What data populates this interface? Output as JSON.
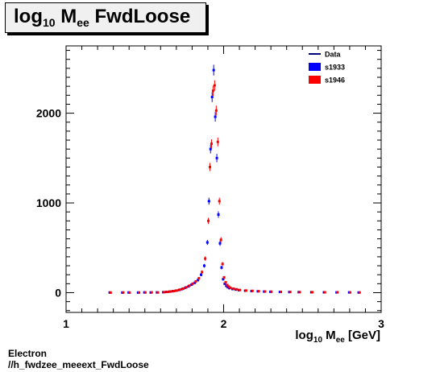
{
  "title": {
    "main": "log",
    "sub1": "10",
    "mid": " M",
    "sub2": "ee",
    "tail": " FwdLoose"
  },
  "footer": {
    "line1": "Electron",
    "line2": "//h_fwdzee_meeext_FwdLoose"
  },
  "chart_data": {
    "type": "scatter",
    "title": "log10 Mee FwdLoose",
    "xlabel": "log10 Mee [GeV]",
    "ylabel": "",
    "xlim": [
      1,
      3
    ],
    "ylim": [
      -220,
      2750
    ],
    "xticks": [
      "1",
      "2",
      "3"
    ],
    "yticks": [
      "0",
      "1000",
      "2000"
    ],
    "grid": false,
    "legend_position": "top-right",
    "legend": [
      {
        "label": "Data",
        "color": "#000080",
        "style": "line"
      },
      {
        "label": "s1933",
        "color": "#0000ff",
        "style": "box"
      },
      {
        "label": "s1946",
        "color": "#ff0000",
        "style": "box"
      }
    ],
    "x": [
      1.28,
      1.36,
      1.4,
      1.46,
      1.5,
      1.54,
      1.58,
      1.62,
      1.64,
      1.66,
      1.68,
      1.7,
      1.72,
      1.74,
      1.76,
      1.78,
      1.8,
      1.82,
      1.84,
      1.86,
      1.88,
      1.9,
      1.91,
      1.92,
      1.93,
      1.94,
      1.95,
      1.96,
      1.97,
      1.98,
      1.99,
      2.0,
      2.01,
      2.02,
      2.03,
      2.04,
      2.06,
      2.08,
      2.1,
      2.14,
      2.18,
      2.22,
      2.26,
      2.3,
      2.36,
      2.42,
      2.48,
      2.56,
      2.64,
      2.72,
      2.8,
      2.86
    ],
    "series": [
      {
        "name": "s1933",
        "color": "#0000ff",
        "values": [
          2,
          1,
          2,
          1,
          3,
          2,
          3,
          5,
          8,
          12,
          16,
          22,
          30,
          40,
          55,
          70,
          90,
          110,
          140,
          200,
          300,
          560,
          1020,
          1600,
          2180,
          2480,
          1960,
          1500,
          870,
          550,
          280,
          150,
          100,
          75,
          60,
          50,
          40,
          34,
          28,
          22,
          18,
          15,
          12,
          10,
          8,
          7,
          6,
          5,
          4,
          3,
          3,
          2
        ]
      },
      {
        "name": "s1946",
        "color": "#ff0000",
        "values": [
          1,
          2,
          1,
          2,
          2,
          3,
          2,
          6,
          9,
          13,
          18,
          24,
          34,
          45,
          60,
          78,
          100,
          125,
          160,
          230,
          380,
          800,
          1400,
          1660,
          2250,
          2310,
          2030,
          1680,
          1020,
          590,
          320,
          170,
          115,
          85,
          68,
          55,
          45,
          38,
          30,
          24,
          20,
          16,
          13,
          11,
          9,
          8,
          6,
          5,
          4,
          4,
          3,
          2
        ]
      }
    ]
  }
}
